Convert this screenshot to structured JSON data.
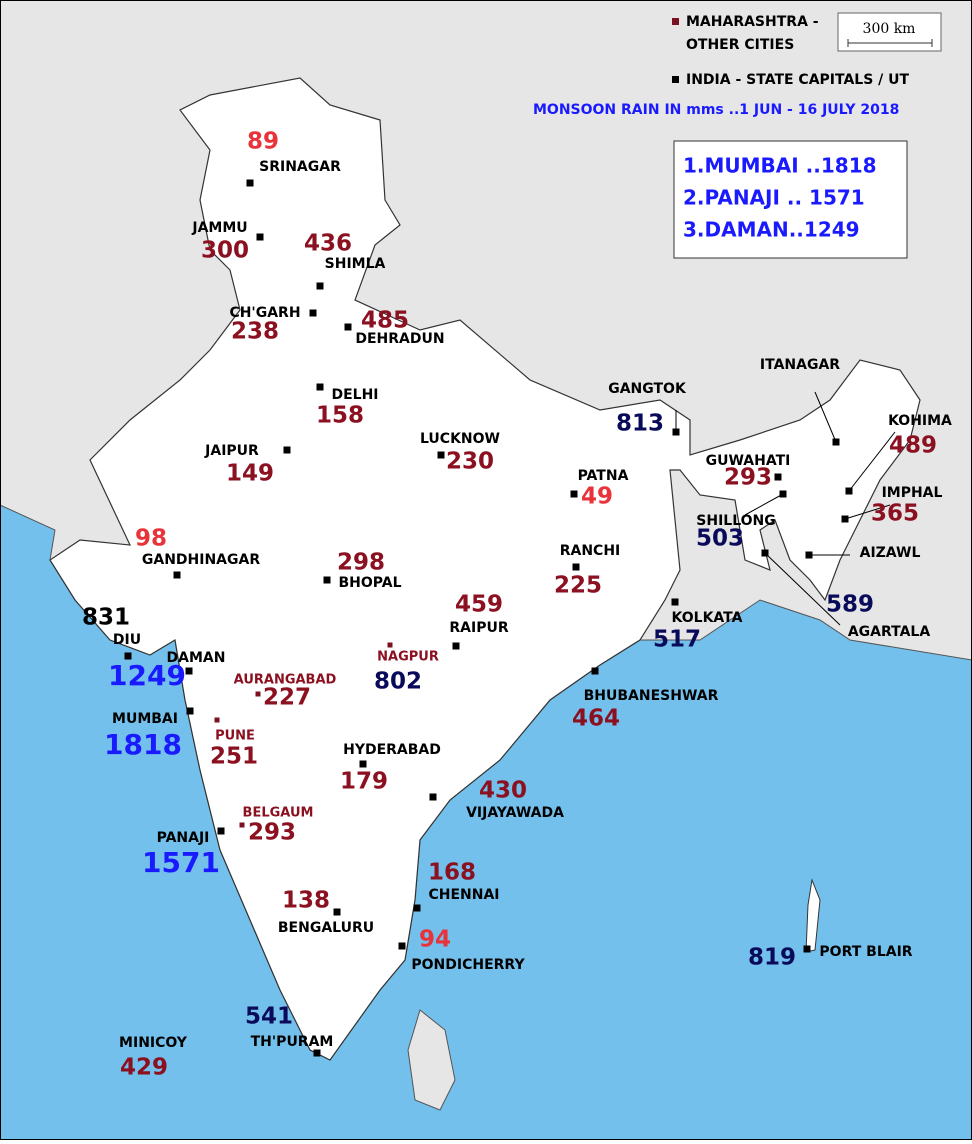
{
  "legend": {
    "items": [
      {
        "label": [
          "MAHARASHTRA -",
          "OTHER CITIES"
        ],
        "color": "#7a1020"
      },
      {
        "label": [
          "INDIA - STATE CAPITALS / UT"
        ],
        "color": "#000000"
      }
    ],
    "scale": "300 km"
  },
  "subtitle": "MONSOON RAIN IN mms ..1 JUN - 16 JULY 2018",
  "top_list": [
    "1.MUMBAI ..1818",
    "2.PANAJI .. 1571",
    "3.DAMAN..1249"
  ],
  "cities": [
    {
      "name": "SRINAGAR",
      "rain": 89,
      "color": "#e8333a"
    },
    {
      "name": "JAMMU",
      "rain": 300,
      "color": "#8b1020"
    },
    {
      "name": "SHIMLA",
      "rain": 436,
      "color": "#8b1020"
    },
    {
      "name": "CH'GARH",
      "rain": 238,
      "color": "#8b1020"
    },
    {
      "name": "DEHRADUN",
      "rain": 485,
      "color": "#8b1020"
    },
    {
      "name": "DELHI",
      "rain": 158,
      "color": "#8b1020"
    },
    {
      "name": "JAIPUR",
      "rain": 149,
      "color": "#8b1020"
    },
    {
      "name": "LUCKNOW",
      "rain": 230,
      "color": "#8b1020"
    },
    {
      "name": "PATNA",
      "rain": 49,
      "color": "#e8333a"
    },
    {
      "name": "GANGTOK",
      "rain": 813,
      "color": "#0a0a5a"
    },
    {
      "name": "ITANAGAR"
    },
    {
      "name": "KOHIMA",
      "rain": 489,
      "color": "#8b1020"
    },
    {
      "name": "GUWAHATI",
      "rain": 293,
      "color": "#8b1020"
    },
    {
      "name": "SHILLONG",
      "rain": 503,
      "color": "#0a0a5a"
    },
    {
      "name": "IMPHAL",
      "rain": 365,
      "color": "#8b1020"
    },
    {
      "name": "AIZAWL"
    },
    {
      "name": "AGARTALA",
      "rain": 589,
      "color": "#0a0a5a"
    },
    {
      "name": "GANDHINAGAR",
      "rain": 98,
      "color": "#e8333a"
    },
    {
      "name": "BHOPAL",
      "rain": 298,
      "color": "#8b1020"
    },
    {
      "name": "RANCHI",
      "rain": 225,
      "color": "#8b1020"
    },
    {
      "name": "DIU",
      "rain": 831,
      "color": "#000000"
    },
    {
      "name": "DAMAN",
      "rain": 1249,
      "color": "#1a1aff"
    },
    {
      "name": "RAIPUR",
      "rain": 459,
      "color": "#8b1020"
    },
    {
      "name": "KOLKATA",
      "rain": 517,
      "color": "#0a0a5a"
    },
    {
      "name": "NAGPUR",
      "rain": 802,
      "color": "#0a0a5a"
    },
    {
      "name": "AURANGABAD",
      "rain": 227,
      "color": "#8b1020"
    },
    {
      "name": "BHUBANESHWAR",
      "rain": 464,
      "color": "#8b1020"
    },
    {
      "name": "MUMBAI",
      "rain": 1818,
      "color": "#1a1aff"
    },
    {
      "name": "PUNE",
      "rain": 251,
      "color": "#8b1020"
    },
    {
      "name": "HYDERABAD",
      "rain": 179,
      "color": "#8b1020"
    },
    {
      "name": "VIJAYAWADA",
      "rain": 430,
      "color": "#8b1020"
    },
    {
      "name": "BELGAUM",
      "rain": 293,
      "color": "#8b1020"
    },
    {
      "name": "PANAJI",
      "rain": 1571,
      "color": "#1a1aff"
    },
    {
      "name": "CHENNAI",
      "rain": 168,
      "color": "#8b1020"
    },
    {
      "name": "BENGALURU",
      "rain": 138,
      "color": "#8b1020"
    },
    {
      "name": "PONDICHERRY",
      "rain": 94,
      "color": "#e8333a"
    },
    {
      "name": "PORT BLAIR",
      "rain": 819,
      "color": "#0a0a5a"
    },
    {
      "name": "TH'PURAM",
      "rain": 541,
      "color": "#0a0a5a"
    },
    {
      "name": "MINICOY",
      "rain": 429,
      "color": "#8b1020"
    }
  ]
}
